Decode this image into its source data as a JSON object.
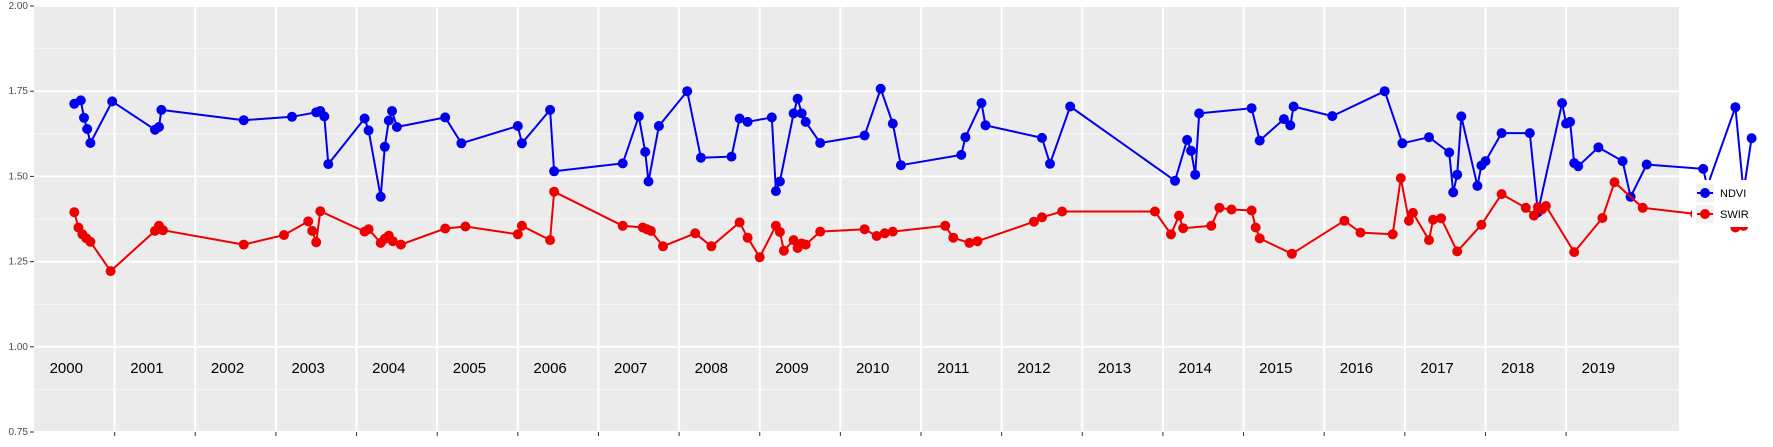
{
  "chart_data": {
    "type": "line",
    "title": "",
    "xlabel": "",
    "ylabel": "",
    "xlim": [
      2000.0,
      2020.4
    ],
    "ylim": [
      0.75,
      2.0
    ],
    "yticks": [
      0.75,
      1.0,
      1.25,
      1.5,
      1.75,
      2.0
    ],
    "ytick_labels": [
      "0.75",
      "1.00",
      "1.25",
      "1.50",
      "1.75",
      "2.00"
    ],
    "year_labels": [
      "2000",
      "2001",
      "2002",
      "2003",
      "2004",
      "2005",
      "2006",
      "2007",
      "2008",
      "2009",
      "2010",
      "2011",
      "2012",
      "2013",
      "2014",
      "2015",
      "2016",
      "2017",
      "2018",
      "2019"
    ],
    "grid": true,
    "legend_position": "right",
    "series": [
      {
        "name": "NDVI",
        "color": "#0000ee",
        "points": [
          [
            2000.5,
            1.713
          ],
          [
            2000.58,
            1.723
          ],
          [
            2000.62,
            1.672
          ],
          [
            2000.66,
            1.639
          ],
          [
            2000.7,
            1.598
          ],
          [
            2000.97,
            1.72
          ],
          [
            2001.5,
            1.637
          ],
          [
            2001.55,
            1.645
          ],
          [
            2001.58,
            1.695
          ],
          [
            2002.6,
            1.665
          ],
          [
            2003.2,
            1.675
          ],
          [
            2003.5,
            1.688
          ],
          [
            2003.55,
            1.692
          ],
          [
            2003.6,
            1.676
          ],
          [
            2003.65,
            1.536
          ],
          [
            2004.1,
            1.67
          ],
          [
            2004.15,
            1.635
          ],
          [
            2004.3,
            1.44
          ],
          [
            2004.35,
            1.587
          ],
          [
            2004.4,
            1.664
          ],
          [
            2004.44,
            1.692
          ],
          [
            2004.5,
            1.645
          ],
          [
            2005.1,
            1.673
          ],
          [
            2005.3,
            1.597
          ],
          [
            2006.0,
            1.648
          ],
          [
            2006.05,
            1.597
          ],
          [
            2006.4,
            1.695
          ],
          [
            2006.45,
            1.515
          ],
          [
            2007.3,
            1.538
          ],
          [
            2007.5,
            1.676
          ],
          [
            2007.58,
            1.572
          ],
          [
            2007.62,
            1.485
          ],
          [
            2007.75,
            1.648
          ],
          [
            2008.1,
            1.75
          ],
          [
            2008.27,
            1.555
          ],
          [
            2008.65,
            1.558
          ],
          [
            2008.75,
            1.67
          ],
          [
            2008.85,
            1.66
          ],
          [
            2009.15,
            1.673
          ],
          [
            2009.2,
            1.457
          ],
          [
            2009.25,
            1.485
          ],
          [
            2009.42,
            1.685
          ],
          [
            2009.47,
            1.728
          ],
          [
            2009.52,
            1.685
          ],
          [
            2009.57,
            1.66
          ],
          [
            2009.75,
            1.598
          ],
          [
            2010.3,
            1.62
          ],
          [
            2010.5,
            1.757
          ],
          [
            2010.65,
            1.655
          ],
          [
            2010.75,
            1.533
          ],
          [
            2011.5,
            1.563
          ],
          [
            2011.55,
            1.615
          ],
          [
            2011.75,
            1.715
          ],
          [
            2011.8,
            1.65
          ],
          [
            2012.5,
            1.613
          ],
          [
            2012.6,
            1.537
          ],
          [
            2012.85,
            1.705
          ],
          [
            2014.15,
            1.487
          ],
          [
            2014.3,
            1.607
          ],
          [
            2014.35,
            1.575
          ],
          [
            2014.4,
            1.505
          ],
          [
            2014.45,
            1.685
          ],
          [
            2015.1,
            1.7
          ],
          [
            2015.2,
            1.605
          ],
          [
            2015.5,
            1.668
          ],
          [
            2015.58,
            1.65
          ],
          [
            2015.62,
            1.705
          ],
          [
            2016.1,
            1.677
          ],
          [
            2016.75,
            1.75
          ],
          [
            2016.97,
            1.597
          ],
          [
            2017.3,
            1.615
          ],
          [
            2017.55,
            1.57
          ],
          [
            2017.6,
            1.453
          ],
          [
            2017.65,
            1.505
          ],
          [
            2017.7,
            1.676
          ],
          [
            2017.9,
            1.472
          ],
          [
            2017.95,
            1.532
          ],
          [
            2018.0,
            1.545
          ],
          [
            2018.2,
            1.627
          ],
          [
            2018.55,
            1.627
          ],
          [
            2018.65,
            1.395
          ],
          [
            2018.95,
            1.715
          ],
          [
            2019.0,
            1.655
          ],
          [
            2019.05,
            1.66
          ],
          [
            2019.1,
            1.539
          ],
          [
            2019.15,
            1.53
          ],
          [
            2019.4,
            1.585
          ],
          [
            2019.7,
            1.545
          ],
          [
            2019.8,
            1.44
          ],
          [
            2020.0,
            1.535
          ],
          [
            2020.7,
            1.522
          ],
          [
            2020.75,
            1.47
          ],
          [
            2021.1,
            1.703
          ],
          [
            2021.2,
            1.455
          ],
          [
            2021.3,
            1.612
          ]
        ]
      },
      {
        "name": "SWIR",
        "color": "#ee0000",
        "points": [
          [
            2000.5,
            1.395
          ],
          [
            2000.55,
            1.35
          ],
          [
            2000.6,
            1.33
          ],
          [
            2000.65,
            1.318
          ],
          [
            2000.7,
            1.308
          ],
          [
            2000.95,
            1.222
          ],
          [
            2001.5,
            1.34
          ],
          [
            2001.55,
            1.355
          ],
          [
            2001.6,
            1.342
          ],
          [
            2002.6,
            1.3
          ],
          [
            2003.1,
            1.328
          ],
          [
            2003.4,
            1.368
          ],
          [
            2003.45,
            1.34
          ],
          [
            2003.5,
            1.307
          ],
          [
            2003.55,
            1.398
          ],
          [
            2004.1,
            1.338
          ],
          [
            2004.15,
            1.345
          ],
          [
            2004.3,
            1.305
          ],
          [
            2004.35,
            1.317
          ],
          [
            2004.4,
            1.326
          ],
          [
            2004.45,
            1.31
          ],
          [
            2004.55,
            1.3
          ],
          [
            2005.1,
            1.347
          ],
          [
            2005.35,
            1.353
          ],
          [
            2006.0,
            1.33
          ],
          [
            2006.05,
            1.355
          ],
          [
            2006.4,
            1.313
          ],
          [
            2006.45,
            1.455
          ],
          [
            2007.3,
            1.355
          ],
          [
            2007.55,
            1.35
          ],
          [
            2007.6,
            1.345
          ],
          [
            2007.65,
            1.34
          ],
          [
            2007.8,
            1.295
          ],
          [
            2008.2,
            1.333
          ],
          [
            2008.4,
            1.295
          ],
          [
            2008.75,
            1.365
          ],
          [
            2008.85,
            1.32
          ],
          [
            2009.0,
            1.263
          ],
          [
            2009.2,
            1.355
          ],
          [
            2009.25,
            1.337
          ],
          [
            2009.3,
            1.282
          ],
          [
            2009.42,
            1.313
          ],
          [
            2009.47,
            1.29
          ],
          [
            2009.52,
            1.303
          ],
          [
            2009.57,
            1.3
          ],
          [
            2009.75,
            1.338
          ],
          [
            2010.3,
            1.345
          ],
          [
            2010.45,
            1.325
          ],
          [
            2010.55,
            1.333
          ],
          [
            2010.65,
            1.338
          ],
          [
            2011.3,
            1.355
          ],
          [
            2011.4,
            1.32
          ],
          [
            2011.6,
            1.305
          ],
          [
            2011.7,
            1.31
          ],
          [
            2012.4,
            1.367
          ],
          [
            2012.5,
            1.38
          ],
          [
            2012.75,
            1.397
          ],
          [
            2013.9,
            1.397
          ],
          [
            2014.1,
            1.33
          ],
          [
            2014.2,
            1.385
          ],
          [
            2014.25,
            1.348
          ],
          [
            2014.6,
            1.355
          ],
          [
            2014.7,
            1.408
          ],
          [
            2014.85,
            1.403
          ],
          [
            2015.1,
            1.4
          ],
          [
            2015.15,
            1.35
          ],
          [
            2015.2,
            1.318
          ],
          [
            2015.6,
            1.273
          ],
          [
            2016.25,
            1.37
          ],
          [
            2016.45,
            1.335
          ],
          [
            2016.85,
            1.33
          ],
          [
            2016.95,
            1.495
          ],
          [
            2017.05,
            1.37
          ],
          [
            2017.1,
            1.393
          ],
          [
            2017.3,
            1.313
          ],
          [
            2017.35,
            1.373
          ],
          [
            2017.45,
            1.377
          ],
          [
            2017.65,
            1.28
          ],
          [
            2017.95,
            1.358
          ],
          [
            2018.2,
            1.448
          ],
          [
            2018.5,
            1.408
          ],
          [
            2018.6,
            1.385
          ],
          [
            2018.65,
            1.41
          ],
          [
            2018.7,
            1.403
          ],
          [
            2018.75,
            1.413
          ],
          [
            2019.1,
            1.278
          ],
          [
            2019.45,
            1.378
          ],
          [
            2019.6,
            1.483
          ],
          [
            2019.95,
            1.408
          ],
          [
            2020.6,
            1.39
          ],
          [
            2020.65,
            1.445
          ],
          [
            2021.0,
            1.388
          ],
          [
            2021.1,
            1.35
          ],
          [
            2021.2,
            1.355
          ]
        ]
      }
    ]
  }
}
